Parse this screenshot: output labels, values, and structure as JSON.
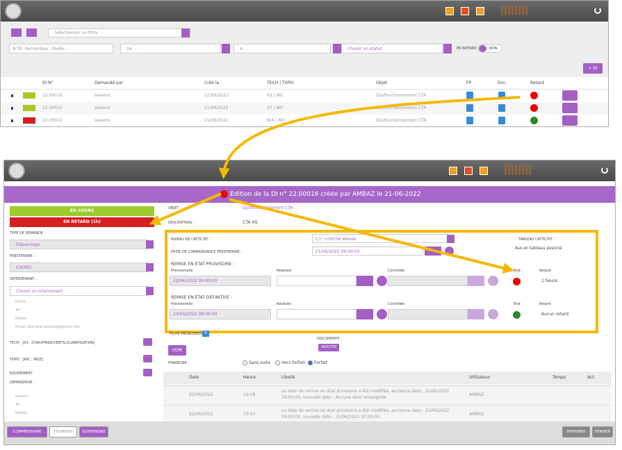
{
  "list": {
    "filter_placeholder": "Sélectionner un filtre",
    "search_placeholder": "N°DI, demandeur, libellé...",
    "from_placeholder": "De ...",
    "to_placeholder": "A ...",
    "status_placeholder": "Choisir un statut",
    "late_label": "EN RETARD",
    "late_toggle": "NON",
    "add_button": "+ DI",
    "columns": [
      "DI N°",
      "Demandé par",
      "Créé le",
      "TECH | TOPO",
      "Objet",
      "FP",
      "Doc.",
      "Retard"
    ],
    "rows": [
      [
        "22.00016",
        "sweens",
        "21/06/2022",
        "03 | NIC",
        "Dysfonctionnement CTA"
      ],
      [
        "22.00015",
        "sweens",
        "21/06/2022",
        "03 | NIC",
        "Dysfonctionnement CTA"
      ],
      [
        "22.00014",
        "sweens",
        "21/06/2022",
        "N/A | NIC",
        "Dysfonctionnement CTA"
      ]
    ]
  },
  "edit": {
    "title": "Édition de la DI n° 22.00016 créée par AMBAZ le 21-06-2022",
    "status": "EN COURS",
    "late_status": "EN RETARD (1h)",
    "type_label": "TYPE DE DEMANDE :",
    "type_value": "Dépannage",
    "provider_label": "PRESTATAIRE :",
    "provider_value": "CHORO",
    "worker_label": "INTERVENANT :",
    "worker_placeholder": "Choisir un intervenant",
    "worker_info": [
      "Entité :",
      "Tél. :",
      "Mobile :",
      "Email: gabrielle.sweens@gecotit.com"
    ],
    "tech": "TECH : [03 : CHAUFFAGE/VENTIL/CLIMATISATION]",
    "topo": "TOPO : [NIC : NICE]",
    "equipment": "EQUIPEMENT",
    "requester_label": "DEMANDEUR :",
    "requester_info": [
      "sweens",
      "Tél. :",
      "Mobile :"
    ],
    "object_label": "OBJET :",
    "object_value": "Dysfonctionnement CTA",
    "description_label": "DESCRIPTION :",
    "description_value": "CTA HS",
    "criticity_label": "NIVEAU DE CRITICITE :",
    "criticity_value": "C1 - criticité élevée",
    "criticity_table_label": "TABLEAU CRITICITE :",
    "criticity_table_value": "Aucun tableau associé",
    "ack_label": "PRISE DE CONNAISSANCE PRESTATAIRE :",
    "ack_value": "21/06/2022 09:00:00",
    "repairs": [
      {
        "label": "REMISE EN ÉTAT PROVISOIRE :",
        "planned": "Prévisionelle",
        "done": "Réalisée",
        "checked": "Contrôlée",
        "state": "Etat",
        "delay": "Retard",
        "planned_value": "22/06/2022 09:00:00",
        "delay_value": "1 heure"
      },
      {
        "label": "REMISE EN ÉTAT DÉFINITIVE :",
        "planned": "Prévisionelle",
        "done": "Réalisée",
        "checked": "Contrôlée",
        "state": "Etat",
        "delay": "Retard",
        "planned_value": "24/06/2022 09:00:00",
        "delay_value": "Aucun retard"
      }
    ],
    "problems_label": "FICHE PROBLEMES :",
    "problems_count": "0",
    "view_button": "VOIR",
    "documents_label": "DOCUMENTS :",
    "add_button": "AJOUTER",
    "financial_label": "FINANCIER :",
    "financial_options": [
      "Sans suite",
      "Hors forfait",
      "Forfait"
    ],
    "history_columns": [
      "Date",
      "Heure",
      "Libellé",
      "Utilisateur",
      "Temps",
      "Act."
    ],
    "history_rows": [
      [
        "22/06/2022",
        "10:18",
        "Le date de remise en état provisoire a été modifiée, ancienne date : 22/06/2022 10:00:00, nouvelle date : Aucune date renseignée",
        "AMBAZ"
      ],
      [
        "22/06/2022",
        "10:15",
        "Le date de remise en état provisoire a été modifiée, ancienne date : 22/06/2022 09:00:00, nouvelle date : 22/06/2022 10:00:00",
        "AMBAZ"
      ]
    ],
    "footer_buttons": [
      "COMMENTAIRE",
      "TERMINER",
      "SUSPENDRE",
      "IMPRIMER",
      "FERMER"
    ]
  }
}
